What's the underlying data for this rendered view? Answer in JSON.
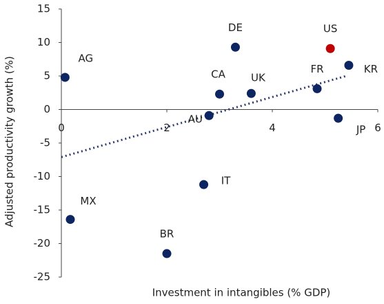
{
  "chart_data": {
    "type": "scatter",
    "x_label": "Investment in intangibles (% GDP)",
    "y_label": "Adjusted productivity growth (%)",
    "labels": [
      "AG",
      "DE",
      "US",
      "KR",
      "CA",
      "UK",
      "FR",
      "AU",
      "JP",
      "IT",
      "MX",
      "BR"
    ],
    "x": [
      0.07,
      3.3,
      5.1,
      5.45,
      3.0,
      3.6,
      4.85,
      2.8,
      5.25,
      2.7,
      0.17,
      2.0
    ],
    "y": [
      4.8,
      9.3,
      9.1,
      6.6,
      2.3,
      2.4,
      3.1,
      -0.9,
      -1.3,
      -11.2,
      -16.4,
      -21.5
    ],
    "colors": [
      "#0d2560",
      "#0d2560",
      "#c00000",
      "#0d2560",
      "#0d2560",
      "#0d2560",
      "#0d2560",
      "#0d2560",
      "#0d2560",
      "#0d2560",
      "#0d2560",
      "#0d2560"
    ],
    "trendline": {
      "x": [
        0,
        5.4
      ],
      "y": [
        -7.1,
        5.0
      ],
      "color": "#2e3a6e"
    },
    "xlim": [
      0,
      6
    ],
    "xticks": [
      0,
      2,
      4,
      6
    ],
    "ylim": [
      -25,
      15
    ],
    "yticks": [
      15,
      10,
      5,
      0,
      -5,
      -10,
      -15,
      -20,
      -25
    ]
  }
}
